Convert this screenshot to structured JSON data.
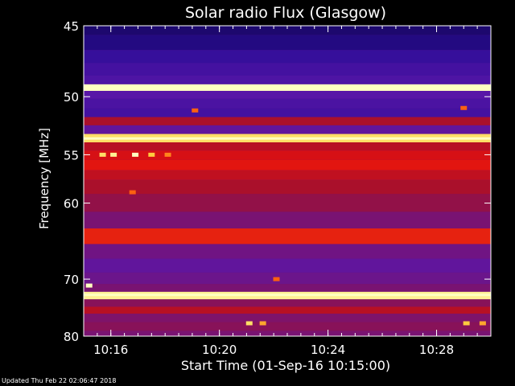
{
  "chart_data": {
    "type": "heatmap",
    "title": "Solar radio Flux (Glasgow)",
    "ylabel": "Frequency [MHz]",
    "xlabel": "Start Time (01-Sep-16 10:15:00)",
    "y_ticks": [
      {
        "value": 45,
        "label": "45"
      },
      {
        "value": 50,
        "label": "50"
      },
      {
        "value": 55,
        "label": "55"
      },
      {
        "value": 60,
        "label": "60"
      },
      {
        "value": 70,
        "label": "70"
      },
      {
        "value": 80,
        "label": "80"
      }
    ],
    "x_ticks": [
      {
        "minute": 1,
        "label": "10:16"
      },
      {
        "minute": 5,
        "label": "10:20"
      },
      {
        "minute": 9,
        "label": "10:24"
      },
      {
        "minute": 13,
        "label": "10:28"
      }
    ],
    "xlim_minutes": [
      0,
      15
    ],
    "ylim_mhz": [
      45,
      80
    ],
    "y_scale": "reciprocal",
    "grid": false,
    "colormap": [
      "#000010",
      "#2a0c96",
      "#5a16a8",
      "#a01030",
      "#e01010",
      "#ff6a10",
      "#ffd040",
      "#ffffc0"
    ],
    "bands": [
      {
        "mhz": 45.0,
        "intensity": 0.1
      },
      {
        "mhz": 46.2,
        "intensity": 0.12
      },
      {
        "mhz": 47.0,
        "intensity": 0.18
      },
      {
        "mhz": 48.0,
        "intensity": 0.22
      },
      {
        "mhz": 48.8,
        "intensity": 0.25
      },
      {
        "mhz": 49.3,
        "intensity": 1.0
      },
      {
        "mhz": 49.8,
        "intensity": 0.28
      },
      {
        "mhz": 50.5,
        "intensity": 0.24
      },
      {
        "mhz": 51.3,
        "intensity": 0.22
      },
      {
        "mhz": 52.0,
        "intensity": 0.45
      },
      {
        "mhz": 52.7,
        "intensity": 0.3
      },
      {
        "mhz": 53.5,
        "intensity": 0.9
      },
      {
        "mhz": 54.2,
        "intensity": 0.48
      },
      {
        "mhz": 55.0,
        "intensity": 0.55
      },
      {
        "mhz": 56.0,
        "intensity": 0.58
      },
      {
        "mhz": 57.0,
        "intensity": 0.5
      },
      {
        "mhz": 58.0,
        "intensity": 0.45
      },
      {
        "mhz": 60.0,
        "intensity": 0.4
      },
      {
        "mhz": 62.0,
        "intensity": 0.35
      },
      {
        "mhz": 64.0,
        "intensity": 0.6
      },
      {
        "mhz": 66.0,
        "intensity": 0.33
      },
      {
        "mhz": 68.0,
        "intensity": 0.3
      },
      {
        "mhz": 70.0,
        "intensity": 0.32
      },
      {
        "mhz": 71.5,
        "intensity": 0.35
      },
      {
        "mhz": 72.5,
        "intensity": 0.95
      },
      {
        "mhz": 74.0,
        "intensity": 0.38
      },
      {
        "mhz": 75.0,
        "intensity": 0.48
      },
      {
        "mhz": 76.5,
        "intensity": 0.36
      },
      {
        "mhz": 78.0,
        "intensity": 0.38
      },
      {
        "mhz": 80.0,
        "intensity": 0.35
      }
    ],
    "bursts": [
      {
        "minute": 0.7,
        "mhz": 55.0,
        "intensity": 0.9
      },
      {
        "minute": 1.1,
        "mhz": 55.0,
        "intensity": 0.95
      },
      {
        "minute": 1.9,
        "mhz": 55.0,
        "intensity": 1.0
      },
      {
        "minute": 2.5,
        "mhz": 55.0,
        "intensity": 0.85
      },
      {
        "minute": 3.1,
        "mhz": 55.0,
        "intensity": 0.75
      },
      {
        "minute": 4.1,
        "mhz": 51.1,
        "intensity": 0.7
      },
      {
        "minute": 0.2,
        "mhz": 71.0,
        "intensity": 1.0
      },
      {
        "minute": 6.1,
        "mhz": 77.5,
        "intensity": 0.9
      },
      {
        "minute": 6.6,
        "mhz": 77.5,
        "intensity": 0.8
      },
      {
        "minute": 7.1,
        "mhz": 70.0,
        "intensity": 0.7
      },
      {
        "minute": 14.1,
        "mhz": 77.5,
        "intensity": 0.85
      },
      {
        "minute": 14.7,
        "mhz": 77.5,
        "intensity": 0.8
      },
      {
        "minute": 1.8,
        "mhz": 58.8,
        "intensity": 0.7
      },
      {
        "minute": 14.0,
        "mhz": 50.9,
        "intensity": 0.7
      }
    ]
  },
  "footer": {
    "updated": "Updated Thu Feb 22 02:06:47 2018"
  }
}
